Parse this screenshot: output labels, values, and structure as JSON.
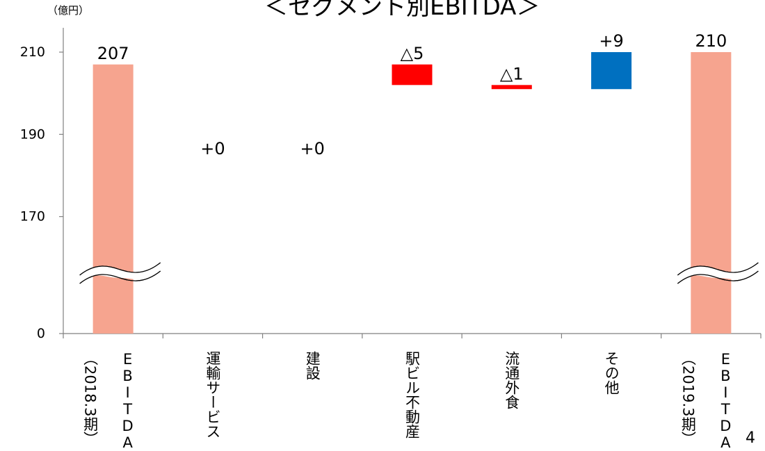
{
  "title": "＜セグメント別EBITDA＞",
  "unit_label": "（億円）",
  "page_number": "4",
  "chart_data": {
    "type": "bar",
    "subtype": "waterfall",
    "categories": [
      {
        "col1": "EBITDA",
        "col2": "（2018.3期）"
      },
      {
        "col1": "運輸サービス",
        "col2": ""
      },
      {
        "col1": "建設",
        "col2": ""
      },
      {
        "col1": "駅ビル不動産",
        "col2": ""
      },
      {
        "col1": "流通外食",
        "col2": ""
      },
      {
        "col1": "その他",
        "col2": ""
      },
      {
        "col1": "EBITDA",
        "col2": "（2019.3期）"
      }
    ],
    "bars": [
      {
        "kind": "total",
        "start": 0,
        "end": 207,
        "label": "207",
        "color": "#f6a48f"
      },
      {
        "kind": "delta",
        "start": 207,
        "end": 207,
        "label": "+0",
        "color": "#ffffff"
      },
      {
        "kind": "delta",
        "start": 207,
        "end": 207,
        "label": "+0",
        "color": "#ffffff"
      },
      {
        "kind": "delta",
        "start": 207,
        "end": 202,
        "label": "△5",
        "color": "#ff0000"
      },
      {
        "kind": "delta",
        "start": 202,
        "end": 201,
        "label": "△1",
        "color": "#ff0000"
      },
      {
        "kind": "delta",
        "start": 201,
        "end": 210,
        "label": "+9",
        "color": "#0070c0"
      },
      {
        "kind": "total",
        "start": 0,
        "end": 210,
        "label": "210",
        "color": "#f6a48f"
      }
    ],
    "yticks": [
      "0",
      "170",
      "190",
      "210"
    ],
    "axis_break": {
      "from": 0,
      "to": 150
    },
    "grid": false
  }
}
